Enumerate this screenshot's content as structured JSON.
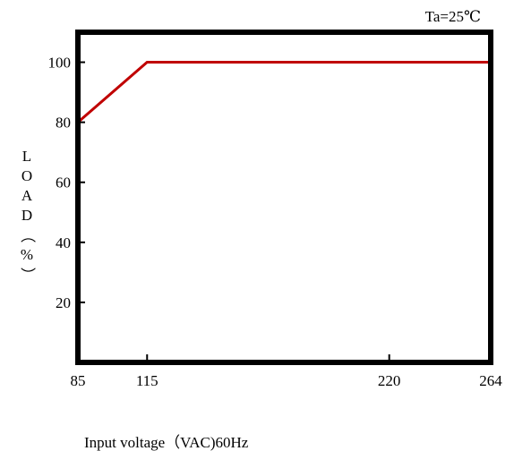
{
  "chart_data": {
    "type": "line",
    "title": "",
    "annotation": "Ta=25℃",
    "xlabel": "Input voltage（VAC)60Hz",
    "ylabel": "LOAD（%）",
    "ylabel_chars": [
      "L",
      "O",
      "A",
      "D",
      "（",
      "%",
      "）"
    ],
    "x_ticks": [
      85,
      115,
      220,
      264
    ],
    "y_ticks": [
      20,
      40,
      60,
      80,
      100
    ],
    "xlim": [
      85,
      264
    ],
    "ylim": [
      0,
      110
    ],
    "grid": false,
    "series": [
      {
        "x": [
          85,
          115,
          264
        ],
        "y": [
          80,
          100,
          100
        ],
        "color": "#c00000"
      }
    ]
  }
}
